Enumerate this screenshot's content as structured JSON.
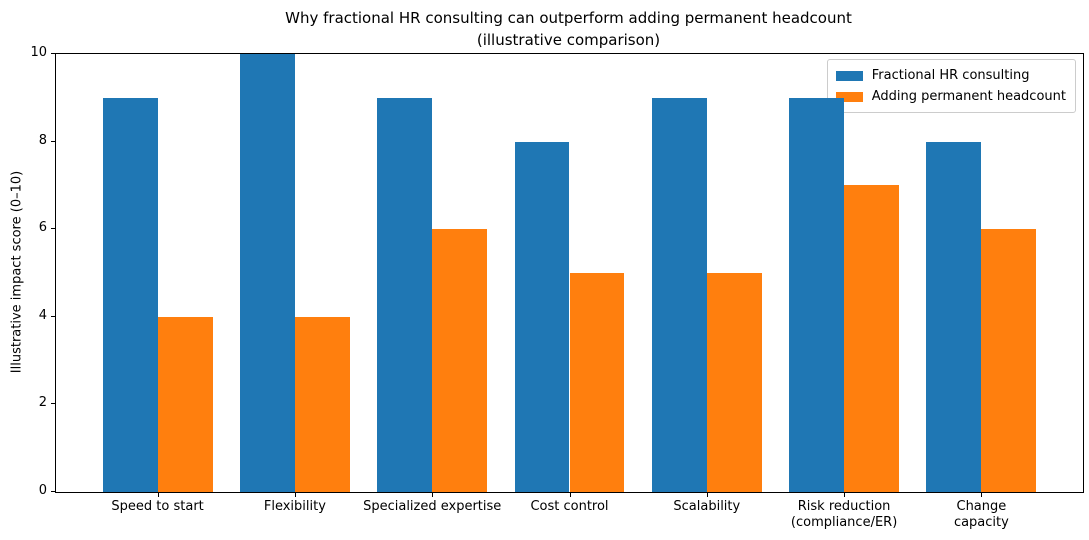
{
  "chart_data": {
    "type": "bar",
    "title": "Why fractional HR consulting can outperform adding permanent headcount",
    "subtitle": "(illustrative comparison)",
    "xlabel": "",
    "ylabel": "Illustrative impact score (0–10)",
    "categories": [
      "Speed to start",
      "Flexibility",
      "Specialized expertise",
      "Cost control",
      "Scalability",
      "Risk reduction\n(compliance/ER)",
      "Change capacity"
    ],
    "series": [
      {
        "name": "Fractional HR consulting",
        "color": "#1f77b4",
        "values": [
          9,
          10,
          9,
          8,
          9,
          9,
          8
        ]
      },
      {
        "name": "Adding permanent headcount",
        "color": "#ff7f0e",
        "values": [
          4,
          4,
          6,
          5,
          5,
          7,
          6
        ]
      }
    ],
    "ylim": [
      0,
      10
    ],
    "yticks": [
      0,
      2,
      4,
      6,
      8,
      10
    ],
    "bar_width": 0.4,
    "xlim": [
      -0.74,
      6.74
    ],
    "grid": false,
    "legend_position": "upper right",
    "axis_color": "#000000",
    "background_color": "#ffffff"
  }
}
